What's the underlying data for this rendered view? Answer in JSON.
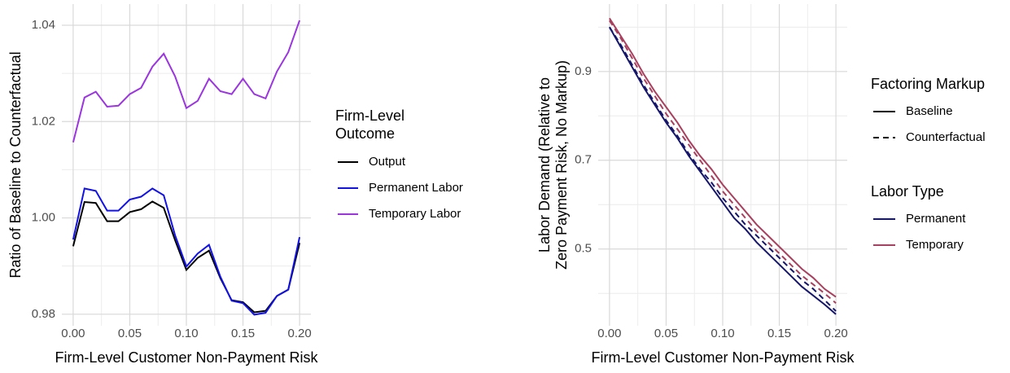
{
  "chart_data": [
    {
      "type": "line",
      "x_label": "Firm-Level Customer Non-Payment Risk",
      "y_label": [
        "Ratio of Baseline to Counterfactual"
      ],
      "legend_title": [
        "Firm-Level",
        "Outcome"
      ],
      "x": [
        0,
        0.01,
        0.02,
        0.03,
        0.04,
        0.05,
        0.06,
        0.07,
        0.08,
        0.09,
        0.1,
        0.11,
        0.12,
        0.13,
        0.14,
        0.15,
        0.16,
        0.17,
        0.18,
        0.19,
        0.2
      ],
      "xlim": [
        -0.01,
        0.21
      ],
      "xticks": [
        {
          "value": 0,
          "label": "0.00"
        },
        0.05,
        {
          "value": 0.1,
          "label": "0.10"
        },
        0.15,
        {
          "value": 0.2,
          "label": "0.20"
        }
      ],
      "ylim": [
        0.9776,
        1.0444
      ],
      "yticks": [
        0.98,
        {
          "value": 1,
          "label": "1.00"
        },
        1.02,
        1.04
      ],
      "grid": true,
      "series": [
        {
          "name": "Output",
          "color": "#000000",
          "dash": "solid",
          "values": [
            0.9941,
            1.0033,
            1.0031,
            0.9993,
            0.9993,
            1.0012,
            1.0018,
            1.0034,
            1.0021,
            0.9954,
            0.9892,
            0.9917,
            0.9932,
            0.9875,
            0.9829,
            0.9825,
            0.9804,
            0.9807,
            0.9838,
            0.9851,
            0.9948
          ]
        },
        {
          "name": "Permanent Labor",
          "color": "#1212e6",
          "dash": "solid",
          "values": [
            0.9955,
            1.0061,
            1.0056,
            1.0015,
            1.0015,
            1.0038,
            1.0044,
            1.0061,
            1.0047,
            0.9964,
            0.9899,
            0.9926,
            0.9944,
            0.9878,
            0.9828,
            0.9823,
            0.9799,
            0.9803,
            0.9838,
            0.9851,
            0.996
          ]
        },
        {
          "name": "Temporary Labor",
          "color": "#9b35df",
          "dash": "solid",
          "values": [
            1.0157,
            1.025,
            1.0262,
            1.0231,
            1.0233,
            1.0257,
            1.027,
            1.0314,
            1.0341,
            1.0294,
            1.0228,
            1.0243,
            1.0289,
            1.0263,
            1.0257,
            1.0289,
            1.0257,
            1.0248,
            1.0304,
            1.0344,
            1.041
          ]
        }
      ]
    },
    {
      "type": "line",
      "x_label": "Firm-Level Customer Non-Payment Risk",
      "y_label": [
        "Labor Demand (Relative to",
        "Zero Payment Risk, No Markup)"
      ],
      "x": [
        0,
        0.01,
        0.02,
        0.03,
        0.04,
        0.05,
        0.06,
        0.07,
        0.08,
        0.09,
        0.1,
        0.11,
        0.12,
        0.13,
        0.14,
        0.15,
        0.16,
        0.17,
        0.18,
        0.19,
        0.2
      ],
      "xlim": [
        -0.01,
        0.21
      ],
      "xticks": [
        {
          "value": 0,
          "label": "0.00"
        },
        0.05,
        {
          "value": 0.1,
          "label": "0.10"
        },
        0.15,
        {
          "value": 0.2,
          "label": "0.20"
        }
      ],
      "ylim": [
        0.327,
        1.052
      ],
      "yticks": [
        0.5,
        0.7,
        0.9
      ],
      "grid": true,
      "legends": [
        {
          "title": "Factoring Markup",
          "entries": [
            {
              "label": "Baseline",
              "dash": "solid"
            },
            {
              "label": "Counterfactual",
              "dash": "dashed"
            }
          ]
        },
        {
          "title": "Labor Type",
          "entries": [
            {
              "label": "Permanent",
              "color": "#16166b"
            },
            {
              "label": "Temporary",
              "color": "#a8405f"
            }
          ]
        }
      ],
      "series": [
        {
          "color": "#16166b",
          "dash": "solid",
          "values": [
            1.0,
            0.955,
            0.91,
            0.865,
            0.825,
            0.785,
            0.75,
            0.71,
            0.675,
            0.64,
            0.605,
            0.57,
            0.545,
            0.515,
            0.49,
            0.465,
            0.44,
            0.415,
            0.395,
            0.375,
            0.353
          ]
        },
        {
          "color": "#16166b",
          "dash": "dashed",
          "values": [
            1.0,
            0.96,
            0.915,
            0.87,
            0.83,
            0.79,
            0.755,
            0.715,
            0.68,
            0.65,
            0.615,
            0.585,
            0.555,
            0.53,
            0.505,
            0.48,
            0.455,
            0.43,
            0.41,
            0.385,
            0.36
          ]
        },
        {
          "color": "#a8405f",
          "dash": "solid",
          "values": [
            1.02,
            0.98,
            0.94,
            0.895,
            0.855,
            0.82,
            0.785,
            0.745,
            0.71,
            0.68,
            0.645,
            0.615,
            0.585,
            0.555,
            0.53,
            0.505,
            0.48,
            0.455,
            0.435,
            0.41,
            0.392
          ]
        },
        {
          "color": "#a8405f",
          "dash": "dashed",
          "values": [
            1.015,
            0.975,
            0.93,
            0.885,
            0.845,
            0.805,
            0.77,
            0.735,
            0.7,
            0.665,
            0.63,
            0.6,
            0.57,
            0.54,
            0.515,
            0.49,
            0.465,
            0.44,
            0.42,
            0.4,
            0.378
          ]
        }
      ]
    }
  ]
}
